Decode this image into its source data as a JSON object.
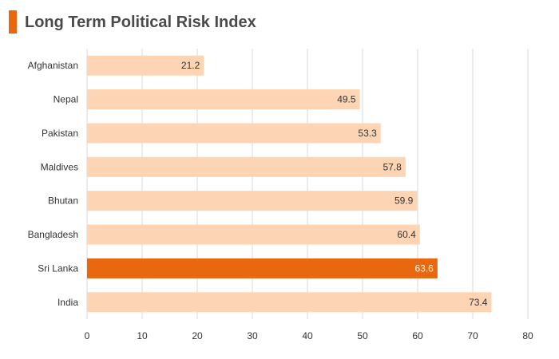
{
  "chart_data": {
    "type": "bar",
    "orientation": "horizontal",
    "title": "Long Term Political Risk Index",
    "categories": [
      "Afghanistan",
      "Nepal",
      "Pakistan",
      "Maldives",
      "Bhutan",
      "Bangladesh",
      "Sri Lanka",
      "India"
    ],
    "values": [
      21.2,
      49.5,
      53.3,
      57.8,
      59.9,
      60.4,
      63.6,
      73.4
    ],
    "highlight": "Sri Lanka",
    "xlim": [
      0,
      80
    ],
    "xticks": [
      0,
      10,
      20,
      30,
      40,
      50,
      60,
      70,
      80
    ],
    "grid": true,
    "legend": false,
    "xlabel": "",
    "ylabel": "",
    "colors": {
      "bar": "#fdd5b4",
      "highlight_bar": "#e8670f",
      "accent": "#e8670f",
      "value_label": "#333333",
      "highlight_value_label": "#ffffff",
      "grid": "#d9d9d9"
    }
  }
}
